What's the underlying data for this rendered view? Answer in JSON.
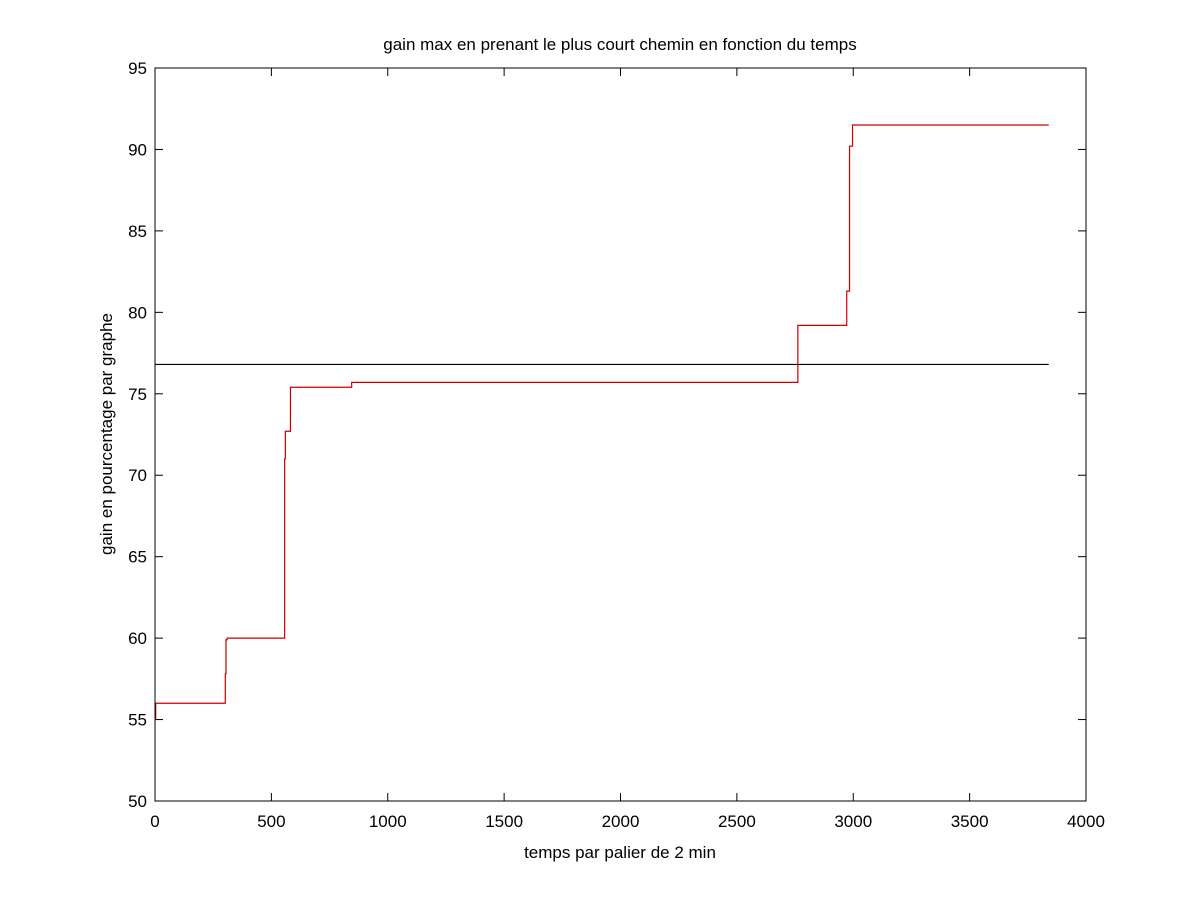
{
  "chart_data": {
    "type": "line",
    "title": "gain max en prenant le plus court chemin en fonction du temps",
    "xlabel": "temps par palier de 2 min",
    "ylabel": "gain en pourcentage par graphe",
    "xlim": [
      0,
      4000
    ],
    "ylim": [
      50,
      95
    ],
    "x_ticks": [
      0,
      500,
      1000,
      1500,
      2000,
      2500,
      3000,
      3500,
      4000
    ],
    "y_ticks": [
      50,
      55,
      60,
      65,
      70,
      75,
      80,
      85,
      90,
      95
    ],
    "grid": false,
    "legend": "none",
    "series": [
      {
        "color": "#cc0000",
        "style": "step",
        "points": [
          [
            0,
            55.0
          ],
          [
            3,
            56.0
          ],
          [
            300,
            56.0
          ],
          [
            302,
            57.8
          ],
          [
            305,
            59.9
          ],
          [
            310,
            60.0
          ],
          [
            555,
            60.0
          ],
          [
            557,
            71.0
          ],
          [
            560,
            72.7
          ],
          [
            580,
            72.7
          ],
          [
            582,
            75.4
          ],
          [
            842,
            75.4
          ],
          [
            845,
            75.7
          ],
          [
            2760,
            75.7
          ],
          [
            2762,
            79.2
          ],
          [
            2970,
            79.2
          ],
          [
            2972,
            81.3
          ],
          [
            2982,
            81.3
          ],
          [
            2984,
            90.2
          ],
          [
            2995,
            90.2
          ],
          [
            2997,
            91.5
          ],
          [
            3840,
            91.5
          ]
        ]
      },
      {
        "color": "#000000",
        "style": "line",
        "points": [
          [
            0,
            76.8
          ],
          [
            3840,
            76.8
          ]
        ]
      }
    ]
  }
}
